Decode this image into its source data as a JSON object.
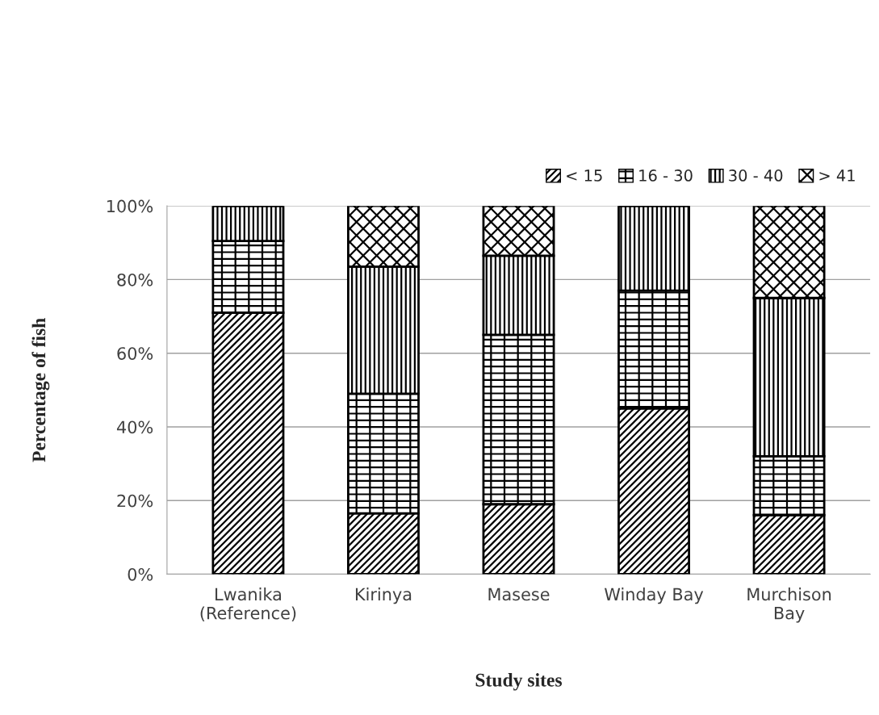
{
  "chart_data": {
    "type": "bar",
    "stacked": true,
    "xlabel": "Study sites",
    "ylabel": "Percentage of fish",
    "categories": [
      "Lwanika\n(Reference)",
      "Kirinya",
      "Masese",
      "Winday Bay",
      "Murchison\nBay"
    ],
    "series": [
      {
        "name": "< 15",
        "color": "#000000",
        "values": [
          71,
          16.5,
          19,
          45,
          16
        ]
      },
      {
        "name": "16 - 30",
        "color": "#000000",
        "values": [
          19.5,
          32.5,
          46,
          32,
          16
        ]
      },
      {
        "name": "30 - 40",
        "color": "#000000",
        "values": [
          9.5,
          34.5,
          21.5,
          23,
          43
        ]
      },
      {
        "name": "> 41",
        "color": "#000000",
        "values": [
          0,
          16.5,
          13.5,
          0,
          25
        ]
      }
    ],
    "ylim": [
      0,
      100
    ],
    "yticks": [
      {
        "value": 0,
        "label": "0%"
      },
      {
        "value": 20,
        "label": "20%"
      },
      {
        "value": 40,
        "label": "40%"
      },
      {
        "value": 60,
        "label": "60%"
      },
      {
        "value": 80,
        "label": "80%"
      },
      {
        "value": 100,
        "label": "100%"
      }
    ],
    "grid": "y",
    "legend": "top right"
  }
}
